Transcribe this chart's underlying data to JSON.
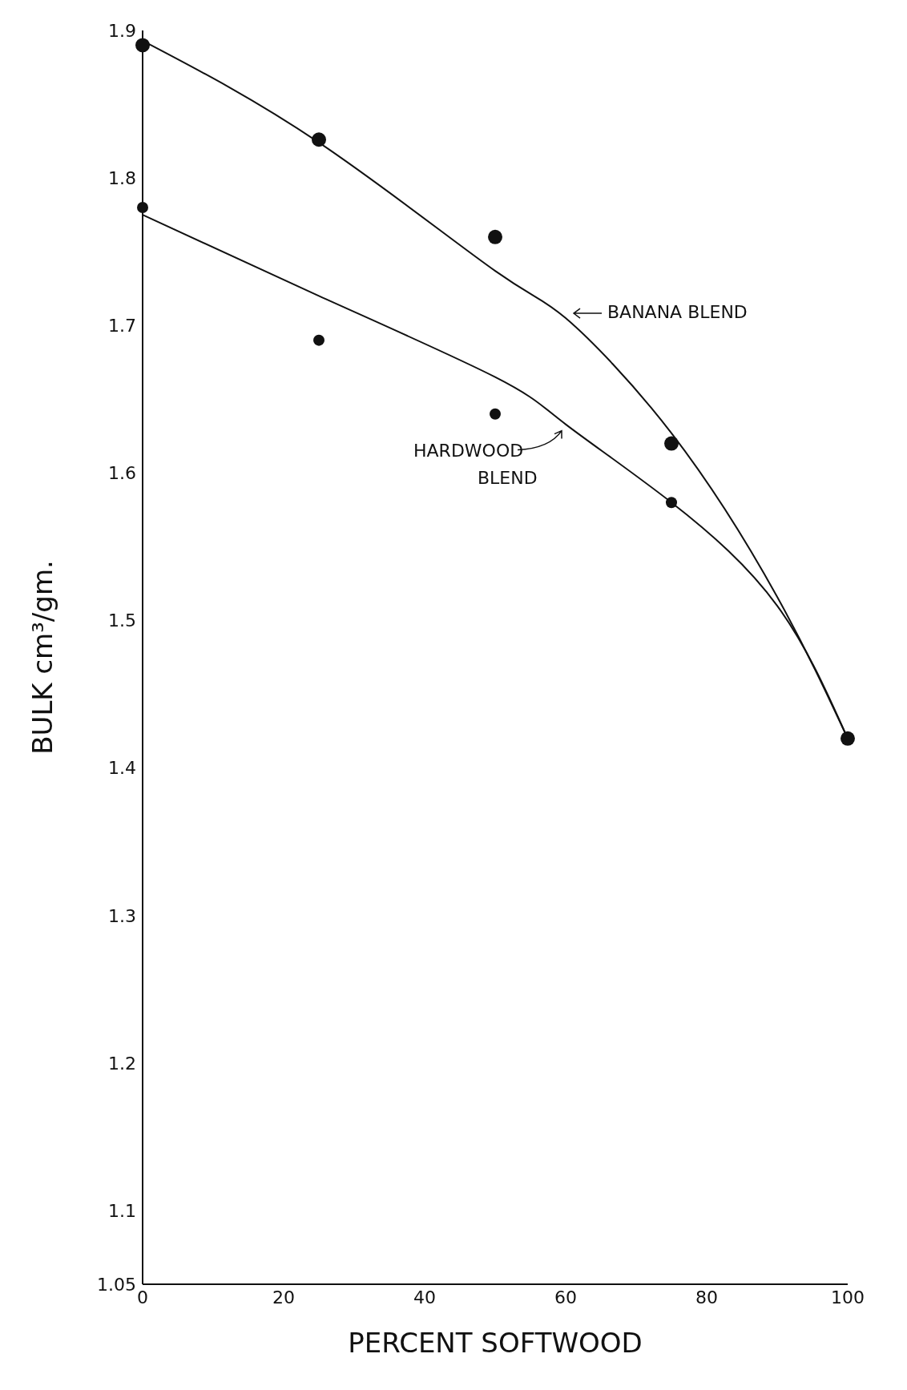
{
  "chart_data": {
    "type": "scatter",
    "xlabel": "PERCENT SOFTWOOD",
    "ylabel": "BULK cm³/gm.",
    "xlim": [
      0,
      100
    ],
    "xticks": [
      0,
      20,
      40,
      60,
      80,
      100
    ],
    "ylim": [
      1.05,
      1.9
    ],
    "yticks": [
      1.05,
      1.1,
      1.2,
      1.3,
      1.4,
      1.5,
      1.6,
      1.7,
      1.8,
      1.9
    ],
    "grid": false,
    "series": [
      {
        "name": "BANANA BLEND",
        "type": "line",
        "color": "#111111",
        "marker": "none",
        "x": [
          0,
          25,
          50,
          60,
          75,
          90,
          100
        ],
        "values": [
          1.893,
          1.824,
          1.737,
          1.705,
          1.627,
          1.516,
          1.42
        ]
      },
      {
        "name": "HARDWOOD BLEND",
        "type": "line",
        "color": "#111111",
        "marker": "none",
        "x": [
          0,
          25,
          50,
          60,
          75,
          90,
          100
        ],
        "values": [
          1.775,
          1.72,
          1.665,
          1.633,
          1.58,
          1.51,
          1.42
        ]
      },
      {
        "color": "#111111",
        "marker": "circle",
        "x": [
          0,
          25,
          50,
          75,
          100
        ],
        "values": [
          1.89,
          1.826,
          1.76,
          1.62,
          1.42
        ]
      },
      {
        "color": "#111111",
        "marker": "circle",
        "x": [
          0,
          25,
          50,
          75
        ],
        "values": [
          1.78,
          1.69,
          1.64,
          1.58
        ]
      }
    ]
  }
}
